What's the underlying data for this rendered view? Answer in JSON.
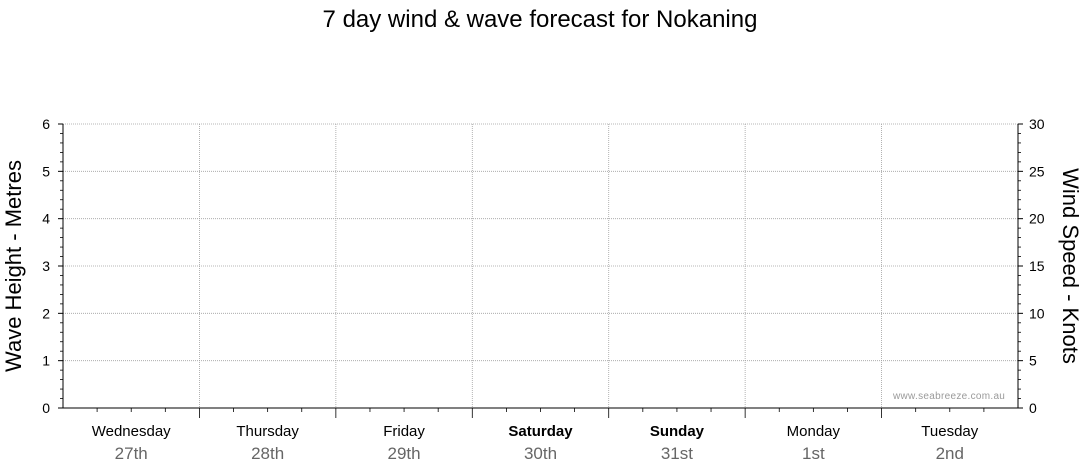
{
  "chart_data": {
    "type": "line",
    "title": "7 day wind & wave forecast for Nokaning",
    "y_left": {
      "label": "Wave Height - Metres",
      "range": [
        0,
        6
      ],
      "ticks": [
        0,
        1,
        2,
        3,
        4,
        5,
        6
      ]
    },
    "y_right": {
      "label": "Wind Speed - Knots",
      "range": [
        0,
        30
      ],
      "ticks": [
        0,
        5,
        10,
        15,
        20,
        25,
        30
      ]
    },
    "days": [
      {
        "name": "Wednesday",
        "date": "27th",
        "bold": false
      },
      {
        "name": "Thursday",
        "date": "28th",
        "bold": false
      },
      {
        "name": "Friday",
        "date": "29th",
        "bold": false
      },
      {
        "name": "Saturday",
        "date": "30th",
        "bold": true
      },
      {
        "name": "Sunday",
        "date": "31st",
        "bold": true
      },
      {
        "name": "Monday",
        "date": "1st",
        "bold": false
      },
      {
        "name": "Tuesday",
        "date": "2nd",
        "bold": false
      }
    ],
    "series": [],
    "grid": true
  },
  "watermark": "www.seabreeze.com.au",
  "colors": {
    "grid": "#a0a0a0",
    "axis": "#000000",
    "date": "#666666",
    "watermark": "#9a9a9a"
  }
}
